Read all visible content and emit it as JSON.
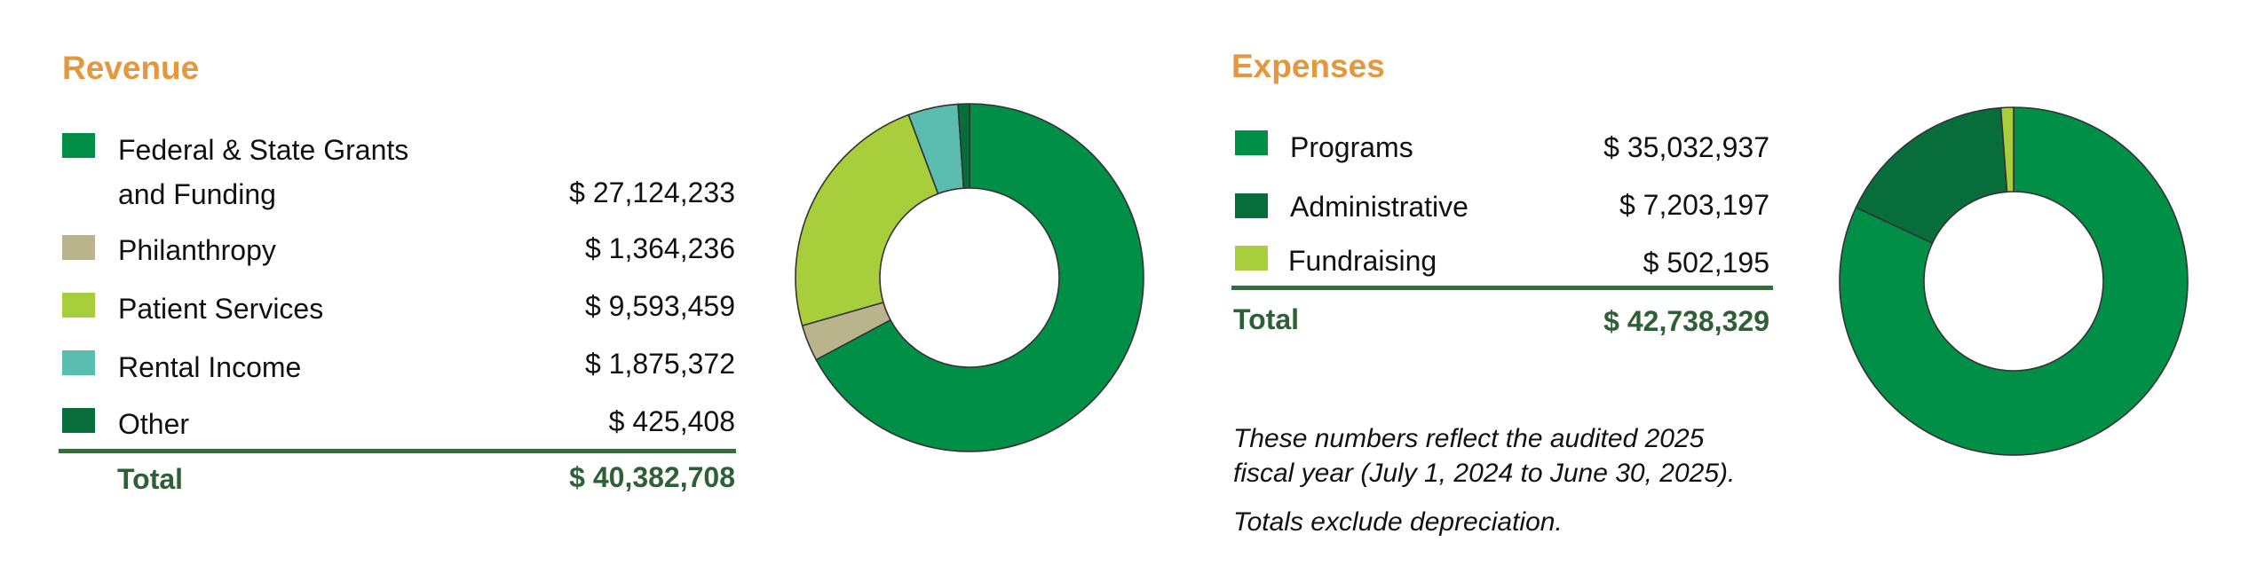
{
  "colors": {
    "heading": "#e3973f",
    "total": "#2f5f36",
    "divider": "#3a6b40"
  },
  "revenue": {
    "title": "Revenue",
    "items": [
      {
        "label_line1": "Federal & State Grants",
        "label_line2": "and Funding",
        "value": "$ 27,124,233",
        "color": "#008f47"
      },
      {
        "label_line1": "Philanthropy",
        "label_line2": "",
        "value": "$ 1,364,236",
        "color": "#b9b48b"
      },
      {
        "label_line1": "Patient Services",
        "label_line2": "",
        "value": "$ 9,593,459",
        "color": "#a8cf3b"
      },
      {
        "label_line1": "Rental Income",
        "label_line2": "",
        "value": "$ 1,875,372",
        "color": "#5bbdaf"
      },
      {
        "label_line1": "Other",
        "label_line2": "",
        "value": "$ 425,408",
        "color": "#076d3b"
      }
    ],
    "total_label": "Total",
    "total_value": "$ 40,382,708"
  },
  "expenses": {
    "title": "Expenses",
    "items": [
      {
        "label": "Programs",
        "value": "$ 35,032,937",
        "color": "#008f47"
      },
      {
        "label": "Administrative",
        "value": "$ 7,203,197",
        "color": "#076d3b"
      },
      {
        "label": "Fundraising",
        "value": "$ 502,195",
        "color": "#a8cf3b"
      }
    ],
    "total_label": "Total",
    "total_value": "$ 42,738,329",
    "notes": [
      "These numbers reflect the audited 2025",
      "fiscal year (July 1, 2024 to June 30, 2025).",
      "Totals exclude depreciation."
    ]
  },
  "chart_data": [
    {
      "type": "pie",
      "title": "Revenue",
      "categories": [
        "Federal & State Grants and Funding",
        "Philanthropy",
        "Patient Services",
        "Rental Income",
        "Other"
      ],
      "values": [
        27124233,
        1364236,
        9593459,
        1875372,
        425408
      ],
      "colors": [
        "#008f47",
        "#b9b48b",
        "#a8cf3b",
        "#5bbdaf",
        "#076d3b"
      ],
      "total": 40382708,
      "donut": true,
      "start_angle_deg": 0,
      "direction": "clockwise",
      "legend_position": "left"
    },
    {
      "type": "pie",
      "title": "Expenses",
      "categories": [
        "Programs",
        "Administrative",
        "Fundraising"
      ],
      "values": [
        35032937,
        7203197,
        502195
      ],
      "colors": [
        "#008f47",
        "#076d3b",
        "#a8cf3b"
      ],
      "total": 42738329,
      "donut": true,
      "start_angle_deg": 0,
      "direction": "clockwise",
      "legend_position": "left"
    }
  ]
}
